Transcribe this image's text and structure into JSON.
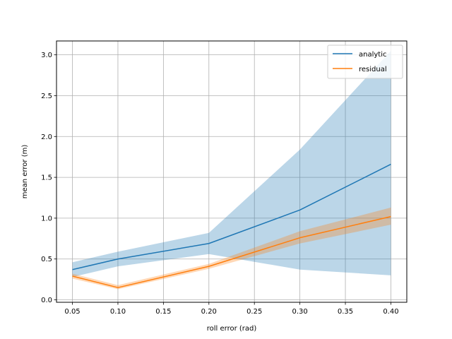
{
  "chart_data": {
    "type": "line",
    "title": "",
    "xlabel": "roll error (rad)",
    "ylabel": "mean error (m)",
    "xlim": [
      0.0325,
      0.4175
    ],
    "ylim": [
      -0.03,
      3.17
    ],
    "xticks": [
      0.05,
      0.1,
      0.15,
      0.2,
      0.25,
      0.3,
      0.35,
      0.4
    ],
    "xtick_labels": [
      "0.05",
      "0.10",
      "0.15",
      "0.20",
      "0.25",
      "0.30",
      "0.35",
      "0.40"
    ],
    "yticks": [
      0.0,
      0.5,
      1.0,
      1.5,
      2.0,
      2.5,
      3.0
    ],
    "ytick_labels": [
      "0.0",
      "0.5",
      "1.0",
      "1.5",
      "2.0",
      "2.5",
      "3.0"
    ],
    "grid": true,
    "legend_position": "top-right",
    "series": [
      {
        "name": "analytic",
        "color": "#1f77b4",
        "band_color": "#1f77b4",
        "x": [
          0.05,
          0.1,
          0.2,
          0.3,
          0.4
        ],
        "y": [
          0.37,
          0.5,
          0.69,
          1.1,
          1.66
        ],
        "lower": [
          0.28,
          0.41,
          0.56,
          0.37,
          0.3
        ],
        "upper": [
          0.46,
          0.59,
          0.82,
          1.84,
          3.05
        ]
      },
      {
        "name": "residual",
        "color": "#ff7f0e",
        "band_color": "#ff7f0e",
        "x": [
          0.05,
          0.1,
          0.2,
          0.3,
          0.4
        ],
        "y": [
          0.29,
          0.15,
          0.41,
          0.76,
          1.02
        ],
        "lower": [
          0.26,
          0.13,
          0.38,
          0.69,
          0.92
        ],
        "upper": [
          0.32,
          0.18,
          0.44,
          0.84,
          1.13
        ]
      }
    ]
  }
}
